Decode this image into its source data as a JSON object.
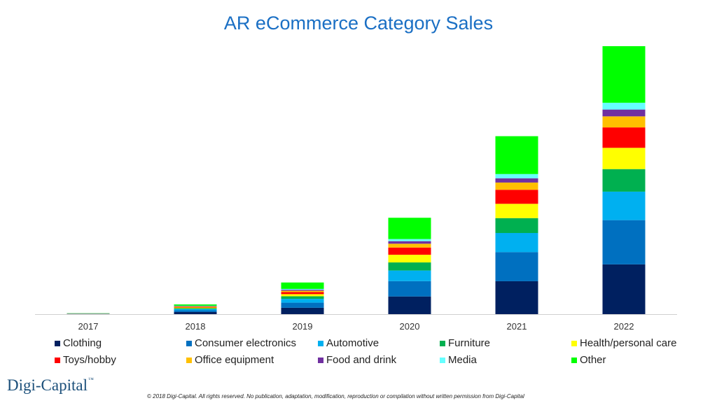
{
  "chart_data": {
    "type": "bar",
    "stacked": true,
    "title": "AR eCommerce Category Sales",
    "categories": [
      "2017",
      "2018",
      "2019",
      "2020",
      "2021",
      "2022"
    ],
    "y_axis_shown": false,
    "grid": false,
    "legend_position": "bottom",
    "series": [
      {
        "name": "Clothing",
        "color": "#002060",
        "values": [
          0.2,
          2.5,
          7.5,
          20.8,
          38.7,
          58.5
        ]
      },
      {
        "name": "Consumer electronics",
        "color": "#0070C0",
        "values": [
          0.2,
          2.0,
          6.0,
          18.0,
          34.2,
          52.0
        ]
      },
      {
        "name": "Automotive",
        "color": "#00B0F0",
        "values": [
          0.1,
          1.5,
          4.5,
          12.5,
          22.5,
          33.5
        ]
      },
      {
        "name": "Furniture",
        "color": "#00B050",
        "values": [
          0.1,
          1.0,
          3.0,
          9.5,
          17.5,
          26.5
        ]
      },
      {
        "name": "Health/personal care",
        "color": "#FFFF00",
        "values": [
          0.1,
          0.8,
          2.5,
          9.0,
          16.8,
          25.0
        ]
      },
      {
        "name": "Toys/hobby",
        "color": "#FF0000",
        "values": [
          0.1,
          0.8,
          2.5,
          8.5,
          16.5,
          24.0
        ]
      },
      {
        "name": "Office equipment",
        "color": "#FFC000",
        "values": [
          0.05,
          0.5,
          1.5,
          4.5,
          8.5,
          13.0
        ]
      },
      {
        "name": "Food and drink",
        "color": "#7030A0",
        "values": [
          0.05,
          0.4,
          1.2,
          3.0,
          5.0,
          8.0
        ]
      },
      {
        "name": "Media",
        "color": "#66FFFF",
        "values": [
          0.05,
          0.4,
          1.0,
          2.5,
          5.0,
          8.0
        ]
      },
      {
        "name": "Other",
        "color": "#00FF00",
        "values": [
          0.2,
          1.5,
          7.5,
          25.0,
          44.5,
          66.5
        ]
      }
    ]
  },
  "footer": {
    "brand": "Digi-Capital",
    "brand_tm": "™",
    "copyright": "© 2018 Digi-Capital. All rights reserved. No publication, adaptation, modification, reproduction or compilation without written permission from Digi-Capital"
  }
}
